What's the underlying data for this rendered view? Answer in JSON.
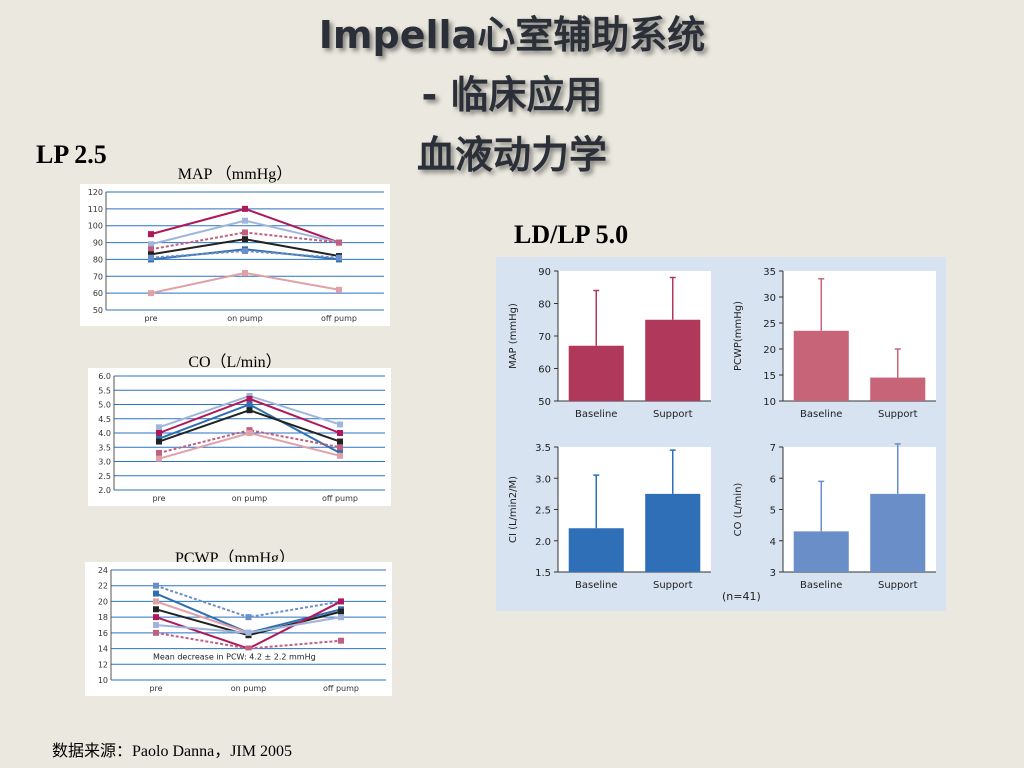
{
  "slide": {
    "title_lines": [
      "Impella心室辅助系统",
      "- 临床应用",
      "血液动力学"
    ],
    "left_label": "LP 2.5",
    "right_label": "LD/LP 5.0",
    "source": "数据来源：Paolo Danna，JIM 2005",
    "n_note": "(n=41)"
  },
  "chart_data": [
    {
      "id": "map_lp25",
      "type": "line",
      "title": "MAP （mmHg）",
      "categories": [
        "pre",
        "on pump",
        "off pump"
      ],
      "ylim": [
        50,
        120
      ],
      "yticks": [
        50,
        60,
        70,
        80,
        90,
        100,
        110,
        120
      ],
      "grid": true,
      "series": [
        {
          "values": [
            95,
            110,
            90
          ],
          "color": "#b0185a",
          "dash": false
        },
        {
          "values": [
            89,
            103,
            90
          ],
          "color": "#9fb6dc",
          "dash": false
        },
        {
          "values": [
            86,
            96,
            90
          ],
          "color": "#c06080",
          "dash": true
        },
        {
          "values": [
            83,
            92,
            82
          ],
          "color": "#222222",
          "dash": false
        },
        {
          "values": [
            80,
            86,
            80
          ],
          "color": "#2e6fb3",
          "dash": false
        },
        {
          "values": [
            81,
            85,
            81
          ],
          "color": "#6a8fc8",
          "dash": true
        },
        {
          "values": [
            60,
            72,
            62
          ],
          "color": "#e0a0a8",
          "dash": false
        }
      ]
    },
    {
      "id": "co_lp25",
      "type": "line",
      "title": "CO（L/min）",
      "categories": [
        "pre",
        "on pump",
        "off pump"
      ],
      "ylim": [
        2.0,
        6.0
      ],
      "yticks": [
        "2.0",
        "2.5",
        "3.0",
        "3.5",
        "4.0",
        "4.5",
        "5.0",
        "5.5",
        "6.0"
      ],
      "grid": true,
      "series": [
        {
          "values": [
            4.2,
            5.3,
            4.3
          ],
          "color": "#9fb6dc",
          "dash": false
        },
        {
          "values": [
            4.0,
            5.2,
            4.0
          ],
          "color": "#b0185a",
          "dash": false
        },
        {
          "values": [
            3.8,
            5.0,
            3.3
          ],
          "color": "#2e6fb3",
          "dash": false
        },
        {
          "values": [
            3.7,
            4.8,
            3.7
          ],
          "color": "#222222",
          "dash": false
        },
        {
          "values": [
            3.3,
            4.1,
            3.5
          ],
          "color": "#c06080",
          "dash": true
        },
        {
          "values": [
            3.1,
            4.0,
            3.2
          ],
          "color": "#e0a0a8",
          "dash": false
        }
      ]
    },
    {
      "id": "pcwp_lp25",
      "type": "line",
      "title": "PCWP（mmHg）",
      "categories": [
        "pre",
        "on pump",
        "off pump"
      ],
      "ylim": [
        10,
        24
      ],
      "yticks": [
        10,
        12,
        14,
        16,
        18,
        20,
        22,
        24
      ],
      "grid": true,
      "annotation": "Mean decrease in PCW: 4.2 ± 2.2 mmHg",
      "series": [
        {
          "values": [
            22,
            18,
            20
          ],
          "color": "#6a8fc8",
          "dash": true
        },
        {
          "values": [
            21,
            16,
            19
          ],
          "color": "#2e6fb3",
          "dash": false
        },
        {
          "values": [
            20,
            16,
            18
          ],
          "color": "#e0a0a8",
          "dash": false
        },
        {
          "values": [
            19,
            15.7,
            18.7
          ],
          "color": "#222222",
          "dash": false
        },
        {
          "values": [
            18,
            14,
            20
          ],
          "color": "#b0185a",
          "dash": false
        },
        {
          "values": [
            17,
            16,
            18
          ],
          "color": "#9fb6dc",
          "dash": false
        },
        {
          "values": [
            16,
            14,
            15
          ],
          "color": "#c06080",
          "dash": true
        }
      ]
    },
    {
      "id": "map_ld50",
      "type": "bar",
      "ylabel": "MAP (mmHg)",
      "categories": [
        "Baseline",
        "Support"
      ],
      "values": [
        67,
        75
      ],
      "error_upper": [
        84,
        88
      ],
      "ylim": [
        50,
        90
      ],
      "yticks": [
        50,
        60,
        70,
        80,
        90
      ],
      "color": "#b0385a"
    },
    {
      "id": "pcwp_ld50",
      "type": "bar",
      "ylabel": "PCWP(mmHg)",
      "categories": [
        "Baseline",
        "Support"
      ],
      "values": [
        23.5,
        14.5
      ],
      "error_upper": [
        33.5,
        20
      ],
      "ylim": [
        10,
        35
      ],
      "yticks": [
        10,
        15,
        20,
        25,
        30,
        35
      ],
      "color": "#c86478"
    },
    {
      "id": "ci_ld50",
      "type": "bar",
      "ylabel": "CI (L/min2/M)",
      "categories": [
        "Baseline",
        "Support"
      ],
      "values": [
        2.2,
        2.75
      ],
      "error_upper": [
        3.05,
        3.45
      ],
      "ylim": [
        1.5,
        3.5
      ],
      "yticks": [
        "1.5",
        "2.0",
        "2.5",
        "3.0",
        "3.5"
      ],
      "color": "#2e6fb8"
    },
    {
      "id": "co_ld50",
      "type": "bar",
      "ylabel": "CO (L/min)",
      "categories": [
        "Baseline",
        "Support"
      ],
      "values": [
        4.3,
        5.5
      ],
      "error_upper": [
        5.9,
        7.1
      ],
      "ylim": [
        3,
        7
      ],
      "yticks": [
        3,
        4,
        5,
        6,
        7
      ],
      "color": "#6a8fc8"
    }
  ]
}
